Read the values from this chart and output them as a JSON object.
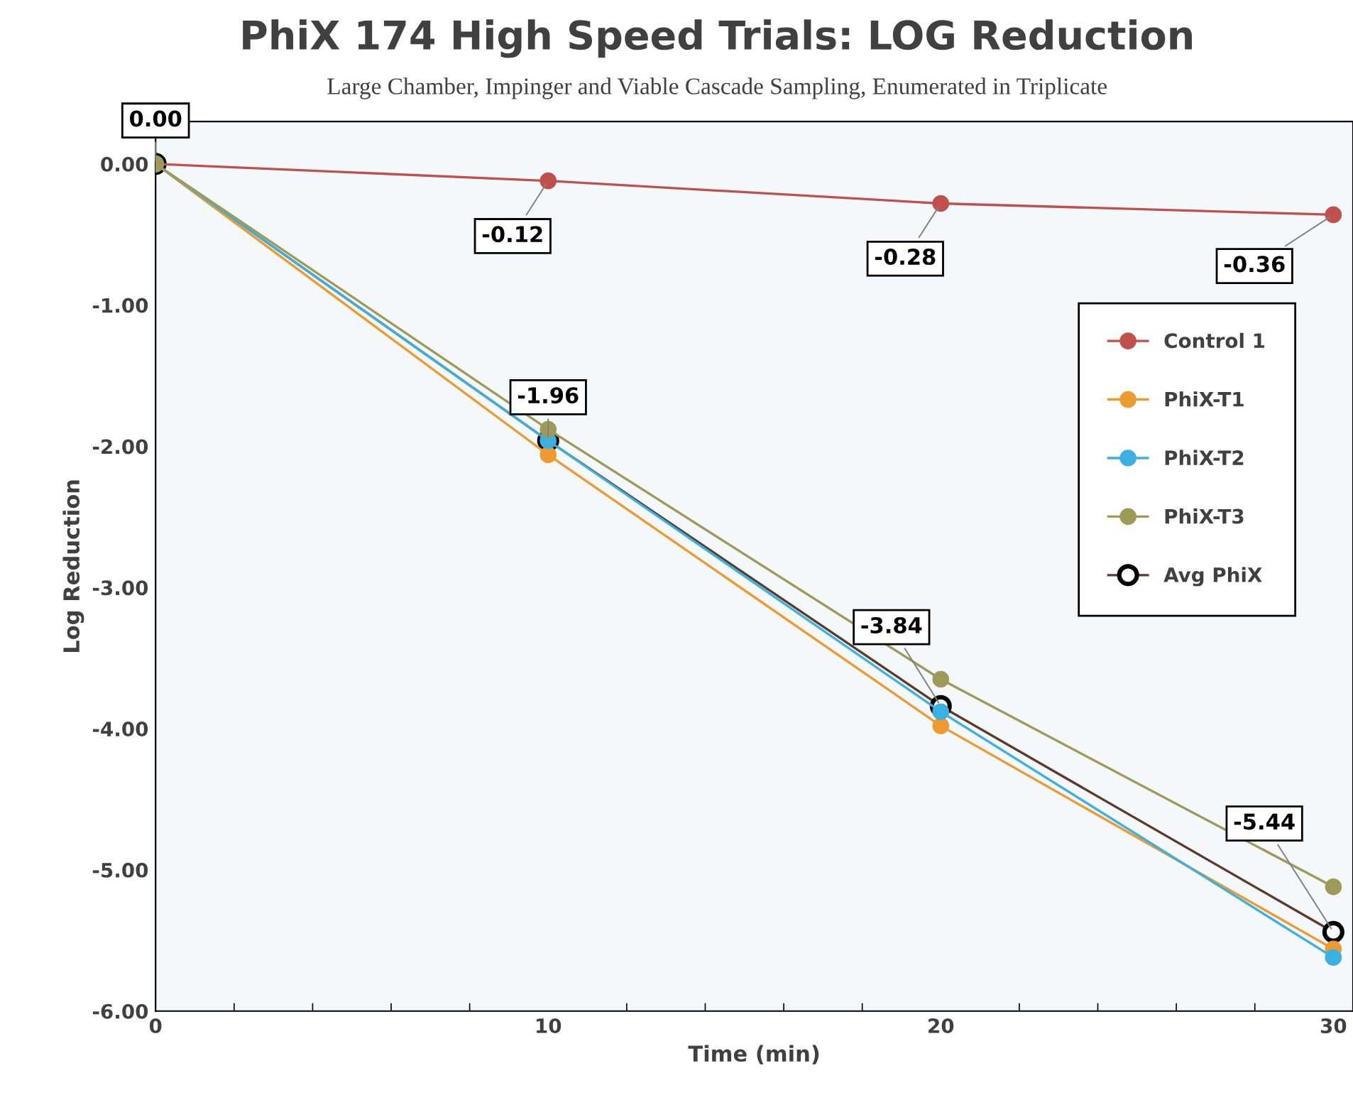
{
  "chart_data": {
    "type": "line",
    "title": "PhiX 174 High Speed Trials: LOG Reduction",
    "subtitle": "Large Chamber, Impinger and Viable Cascade Sampling, Enumerated in Triplicate",
    "xlabel": "Time (min)",
    "ylabel": "Log Reduction",
    "x": [
      0,
      10,
      20,
      30
    ],
    "xlim": [
      0,
      30.5
    ],
    "xticks": [
      0,
      10,
      20,
      30
    ],
    "ylim": [
      -6,
      0.3
    ],
    "yticks": [
      {
        "value": 0,
        "label": "0.00"
      },
      {
        "value": -1,
        "label": "-1.00"
      },
      {
        "value": -2,
        "label": "-2.00"
      },
      {
        "value": -3,
        "label": "-3.00"
      },
      {
        "value": -4,
        "label": "-4.00"
      },
      {
        "value": -5,
        "label": "-5.00"
      },
      {
        "value": -6,
        "label": "-6.00"
      }
    ],
    "marker": "circle",
    "grid": false,
    "legend": "right",
    "series": [
      {
        "name": "Control 1",
        "color": "#c0504d",
        "values": [
          0,
          -0.12,
          -0.28,
          -0.36
        ],
        "value_labels": [
          null,
          "-0.12",
          "-0.28",
          "-0.36"
        ]
      },
      {
        "name": "PhiX-T1",
        "color": "#ed9a31",
        "values": [
          0,
          -2.06,
          -3.98,
          -5.56
        ]
      },
      {
        "name": "PhiX-T2",
        "color": "#3cb0e0",
        "values": [
          0,
          -1.96,
          -3.88,
          -5.62
        ]
      },
      {
        "name": "PhiX-T3",
        "color": "#9e9a5a",
        "values": [
          0,
          -1.88,
          -3.65,
          -5.12
        ]
      },
      {
        "name": "Avg PhiX",
        "color": "#000000",
        "values": [
          0,
          -1.96,
          -3.84,
          -5.44
        ],
        "value_labels": [
          "0.00",
          "-1.96",
          "-3.84",
          "-5.44"
        ]
      }
    ]
  }
}
